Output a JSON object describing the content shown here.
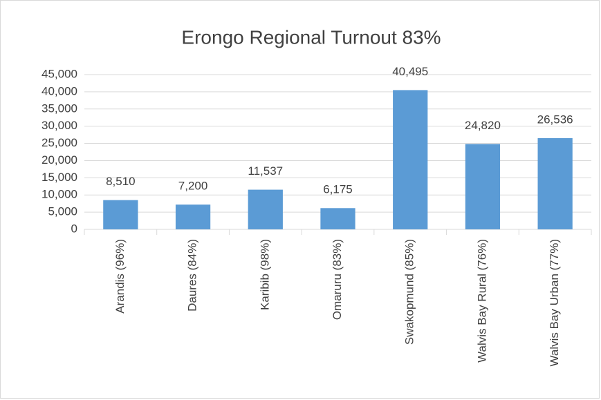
{
  "chart_data": {
    "type": "bar",
    "title": "Erongo Regional Turnout 83%",
    "categories": [
      "Arandis (96%)",
      "Daures (84%)",
      "Karibib (98%)",
      "Omaruru (83%)",
      "Swakopmund (85%)",
      "Walvis Bay Rural (76%)",
      "Walvis Bay Urban (77%)"
    ],
    "values": [
      8510,
      7200,
      11537,
      6175,
      40495,
      24820,
      26536
    ],
    "value_labels": [
      "8,510",
      "7,200",
      "11,537",
      "6,175",
      "40,495",
      "24,820",
      "26,536"
    ],
    "color": "#5b9bd5",
    "ylim": [
      0,
      45000
    ],
    "yticks": [
      0,
      {
        "value": 5000,
        "label": "5,000"
      },
      {
        "value": 10000,
        "label": "10,000"
      },
      {
        "value": 15000,
        "label": "15,000"
      },
      {
        "value": 20000,
        "label": "20,000"
      },
      {
        "value": 25000,
        "label": "25,000"
      },
      {
        "value": 30000,
        "label": "30,000"
      },
      {
        "value": 35000,
        "label": "35,000"
      },
      {
        "value": 40000,
        "label": "40,000"
      },
      {
        "value": 45000,
        "label": "45,000"
      }
    ],
    "grid": true
  }
}
